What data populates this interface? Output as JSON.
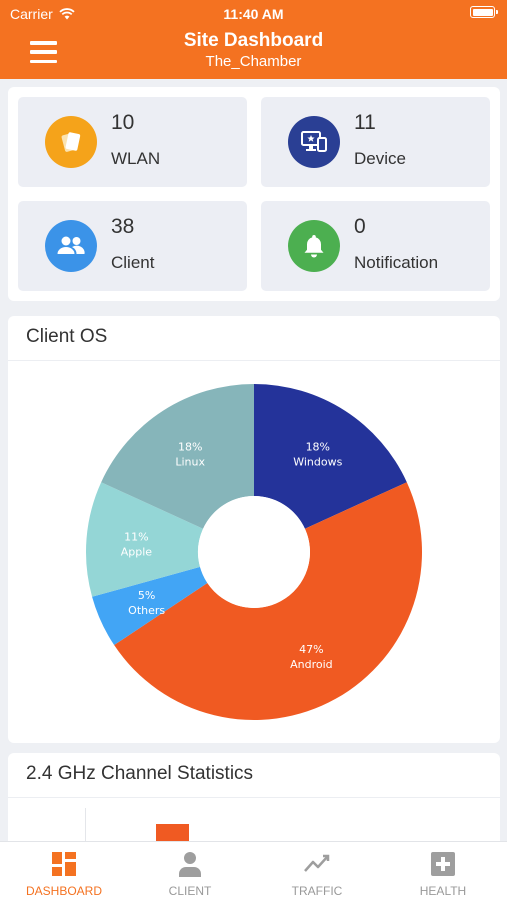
{
  "status_bar": {
    "carrier": "Carrier",
    "time": "11:40 AM"
  },
  "header": {
    "title": "Site Dashboard",
    "subtitle": "The_Chamber",
    "bg_color": "#f47221"
  },
  "stats": [
    {
      "value": "10",
      "label": "WLAN",
      "icon": "cards-icon",
      "color": "#f5a31a"
    },
    {
      "value": "11",
      "label": "Device",
      "icon": "devices-icon",
      "color": "#2a3f94"
    },
    {
      "value": "38",
      "label": "Client",
      "icon": "users-icon",
      "color": "#3b93e8"
    },
    {
      "value": "0",
      "label": "Notification",
      "icon": "bell-icon",
      "color": "#4caf50"
    }
  ],
  "client_os": {
    "title": "Client OS",
    "chart_data": {
      "type": "pie",
      "donut": true,
      "slices": [
        {
          "pct_label": "18%",
          "name": "Windows",
          "value": 18,
          "color": "#24339a"
        },
        {
          "pct_label": "47%",
          "name": "Android",
          "value": 47,
          "color": "#f05a22"
        },
        {
          "pct_label": "5%",
          "name": "Others",
          "value": 5,
          "color": "#42a5f5"
        },
        {
          "pct_label": "11%",
          "name": "Apple",
          "value": 11,
          "color": "#94d6d6"
        },
        {
          "pct_label": "18%",
          "name": "Linux",
          "value": 18,
          "color": "#86b5ba"
        }
      ]
    }
  },
  "channel_stats": {
    "title": "2.4 GHz Channel Statistics"
  },
  "tabs": [
    {
      "label": "DASHBOARD",
      "icon": "dashboard-icon",
      "active": true
    },
    {
      "label": "CLIENT",
      "icon": "person-icon",
      "active": false
    },
    {
      "label": "TRAFFIC",
      "icon": "trend-icon",
      "active": false
    },
    {
      "label": "HEALTH",
      "icon": "health-icon",
      "active": false
    }
  ]
}
